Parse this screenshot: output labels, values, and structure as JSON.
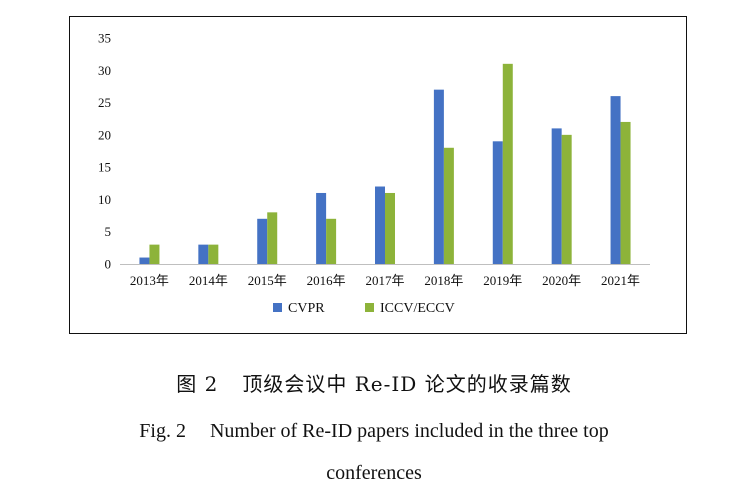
{
  "chart_data": {
    "type": "bar",
    "categories": [
      "2013年",
      "2014年",
      "2015年",
      "2016年",
      "2017年",
      "2018年",
      "2019年",
      "2020年",
      "2021年"
    ],
    "series": [
      {
        "name": "CVPR",
        "color": "#4472C4",
        "values": [
          1,
          3,
          7,
          11,
          12,
          27,
          19,
          21,
          26
        ]
      },
      {
        "name": "ICCV/ECCV",
        "color": "#8DB33A",
        "values": [
          3,
          3,
          8,
          7,
          11,
          18,
          31,
          20,
          22
        ]
      }
    ],
    "ylim": [
      0,
      35
    ],
    "yticks": [
      0,
      5,
      10,
      15,
      20,
      25,
      30,
      35
    ],
    "grid": false,
    "legend_position": "bottom-center",
    "title": "",
    "xlabel": "",
    "ylabel": ""
  },
  "caption": {
    "zh_label": "图 2",
    "zh_text": "顶级会议中 Re-ID 论文的收录篇数",
    "en_label": "Fig. 2",
    "en_text_line1": "Number of Re-ID papers included in the three top",
    "en_text_line2": "conferences"
  }
}
